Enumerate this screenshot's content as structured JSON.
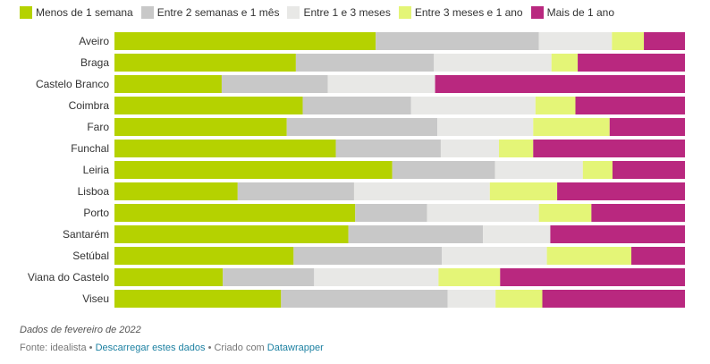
{
  "chart_data": {
    "type": "bar",
    "orientation": "horizontal",
    "stacked": true,
    "normalized": true,
    "categories": [
      "Aveiro",
      "Braga",
      "Castelo Branco",
      "Coimbra",
      "Faro",
      "Funchal",
      "Leiria",
      "Lisboa",
      "Porto",
      "Santarém",
      "Setúbal",
      "Viana do Castelo",
      "Viseu"
    ],
    "series": [
      {
        "name": "Menos de 1 semana",
        "color": "#b5d200",
        "values": [
          45.8,
          31.8,
          18.8,
          33.0,
          30.2,
          38.8,
          48.7,
          21.6,
          42.2,
          41.0,
          31.4,
          19.0,
          29.2
        ]
      },
      {
        "name": "Entre 2 semanas e 1 mês",
        "color": "#c8c8c8",
        "values": [
          28.6,
          24.2,
          18.6,
          19.0,
          26.4,
          18.4,
          18.0,
          20.4,
          12.6,
          23.6,
          26.0,
          16.0,
          29.2
        ]
      },
      {
        "name": "Entre 1 e 3 meses",
        "color": "#e8e8e6",
        "values": [
          12.8,
          20.6,
          18.8,
          21.8,
          16.8,
          10.2,
          15.4,
          23.8,
          19.6,
          11.8,
          18.4,
          21.8,
          8.4
        ]
      },
      {
        "name": "Entre 3 meses e 1 ano",
        "color": "#e4f577",
        "values": [
          5.6,
          4.6,
          0,
          7.0,
          13.4,
          6.0,
          5.2,
          11.8,
          9.2,
          0,
          14.8,
          10.8,
          8.2
        ]
      },
      {
        "name": "Mais de 1 ano",
        "color": "#b9287f",
        "values": [
          7.2,
          18.8,
          43.8,
          19.2,
          13.2,
          26.6,
          12.7,
          22.4,
          16.4,
          23.6,
          9.4,
          32.4,
          25.0
        ]
      }
    ],
    "xlim": [
      0,
      100
    ]
  },
  "note": "Dados de fevereiro de 2022",
  "footer": {
    "source_label": "Fonte: idealista",
    "separator": "•",
    "download_link": "Descarregar estes dados",
    "created_label": "Criado com",
    "tool_link": "Datawrapper"
  }
}
